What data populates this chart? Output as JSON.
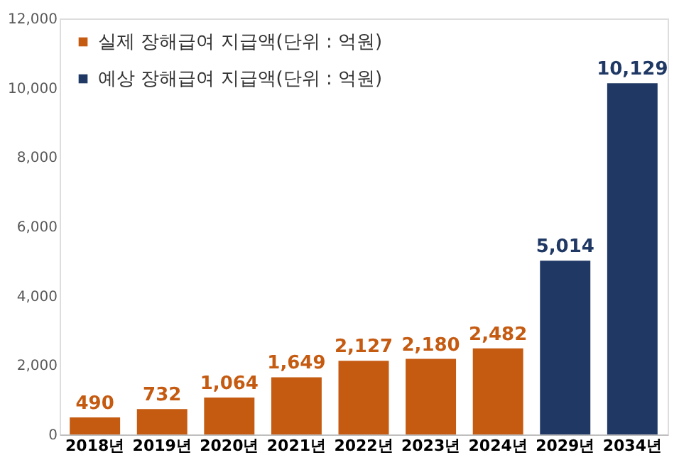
{
  "chart_data": {
    "type": "bar",
    "categories": [
      "2018년",
      "2019년",
      "2020년",
      "2021년",
      "2022년",
      "2023년",
      "2024년",
      "2029년",
      "2034년"
    ],
    "series": [
      {
        "name": "실제 장해급여 지급액(단위 : 억원)",
        "color": "#c55a11",
        "values": [
          490,
          732,
          1064,
          1649,
          2127,
          2180,
          2482,
          null,
          null
        ]
      },
      {
        "name": "예상 장해급여 지급액(단위 : 억원)",
        "color": "#1f3864",
        "values": [
          null,
          null,
          null,
          null,
          null,
          null,
          null,
          5014,
          10129
        ]
      }
    ],
    "ylim": [
      0,
      12000
    ],
    "yticks": [
      {
        "value": 0,
        "label": "0"
      },
      {
        "value": 2000,
        "label": "2,000"
      },
      {
        "value": 4000,
        "label": "4,000"
      },
      {
        "value": 6000,
        "label": "6,000"
      },
      {
        "value": 8000,
        "label": "8,000"
      },
      {
        "value": 10000,
        "label": "10,000"
      },
      {
        "value": 12000,
        "label": "12,000"
      }
    ],
    "value_labels": [
      "490",
      "732",
      "1,064",
      "1,649",
      "2,127",
      "2,180",
      "2,482",
      "5,014",
      "10,129"
    ],
    "grid": false,
    "legend": "top left"
  }
}
